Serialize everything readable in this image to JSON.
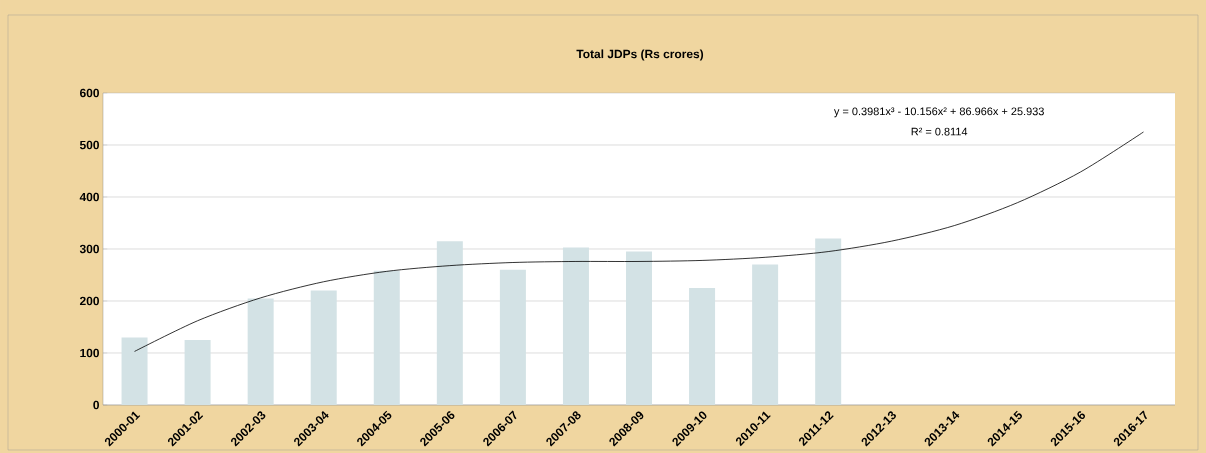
{
  "chart_data": {
    "type": "bar",
    "title": "Total JDPs (Rs crores)",
    "categories": [
      "2000-01",
      "2001-02",
      "2002-03",
      "2003-04",
      "2004-05",
      "2005-06",
      "2006-07",
      "2007-08",
      "2008-09",
      "2009-10",
      "2010-11",
      "2011-12",
      "2012-13",
      "2013-14",
      "2014-15",
      "2015-16",
      "2016-17"
    ],
    "series": [
      {
        "color": "#d3e2e5",
        "values": [
          130,
          125,
          205,
          220,
          258,
          315,
          260,
          303,
          295,
          225,
          270,
          320,
          null,
          null,
          null,
          null,
          null
        ]
      },
      {
        "type": "line",
        "color": "#000000",
        "values": [
          103,
          162,
          206,
          237,
          257,
          268,
          274,
          276,
          276,
          278,
          284,
          295,
          315,
          345,
          389,
          448,
          525
        ]
      }
    ],
    "ylim": [
      0,
      600
    ],
    "yticks": [
      0,
      100,
      200,
      300,
      400,
      500,
      600
    ],
    "grid": "y",
    "marker": "none",
    "annotations": [
      "y = 0.3981x³ - 10.156x² + 86.966x + 25.933",
      "R² = 0.8114"
    ]
  }
}
